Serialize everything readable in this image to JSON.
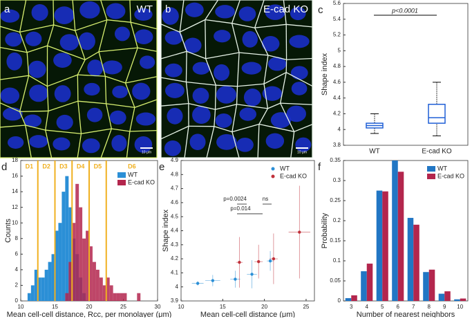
{
  "images": [
    {
      "panel_label": "a",
      "label": "WT",
      "scale_bar": "10 μm"
    },
    {
      "panel_label": "b",
      "label": "E-cad KO",
      "scale_bar": "10 μm"
    }
  ],
  "chart_data": [
    {
      "type": "box",
      "panel_label": "c",
      "ylabel": "Shape index",
      "categories": [
        "WT",
        "E-cad KO"
      ],
      "boxes": [
        {
          "whislo": 3.95,
          "q1": 4.02,
          "med": 4.05,
          "q3": 4.08,
          "whishi": 4.2
        },
        {
          "whislo": 3.92,
          "q1": 4.08,
          "med": 4.15,
          "q3": 4.32,
          "whishi": 4.6
        }
      ],
      "color": "#1f5fd6",
      "ylim": [
        3.8,
        5.6
      ],
      "yticks": [
        3.8,
        4,
        4.2,
        4.4,
        4.6,
        4.8,
        5,
        5.2,
        5.4,
        5.6
      ],
      "annotation": "p<0.0001"
    },
    {
      "type": "histogram",
      "panel_label": "d",
      "xlabel": "Mean cell-cell distance, Rcc, per monolayer (μm)",
      "ylabel": "Counts",
      "bins": [
        11,
        11.5,
        12,
        12.5,
        13,
        13.5,
        14,
        14.5,
        15,
        15.5,
        16,
        16.5,
        17,
        17.5,
        18,
        18.5,
        19,
        19.5,
        20,
        20.5,
        21,
        21.5,
        22,
        22.5,
        23,
        23.5,
        24,
        24.5,
        25,
        25.5,
        26,
        26.5,
        27,
        27.5,
        28
      ],
      "series": [
        {
          "name": "WT",
          "color": "#2b8fd6",
          "values": [
            1,
            2,
            4,
            3,
            3,
            4,
            5,
            6,
            9,
            10,
            14,
            16,
            12,
            8,
            6,
            3,
            1,
            0,
            0,
            0,
            0,
            0,
            0,
            0,
            0,
            0,
            0,
            0,
            0,
            0,
            0,
            0,
            0,
            0
          ]
        },
        {
          "name": "E-cad KO",
          "color": "#b3264d",
          "values": [
            0,
            0,
            0,
            0,
            0,
            0,
            0,
            0,
            0,
            0,
            0,
            1,
            5,
            10,
            15,
            12,
            8,
            9,
            7,
            5,
            4,
            3,
            2,
            3,
            2,
            1,
            1,
            1,
            1,
            0,
            0,
            0,
            1,
            0
          ]
        }
      ],
      "regions": {
        "labels": [
          "D1",
          "D2",
          "D3",
          "D4",
          "D5",
          "D6"
        ],
        "boundaries": [
          12.5,
          15,
          17.5,
          20,
          22.5
        ],
        "color": "#f0b020"
      },
      "xlim": [
        10,
        30
      ],
      "xticks": [
        10,
        15,
        20,
        25,
        30
      ],
      "ylim": [
        0,
        18
      ],
      "yticks": [
        0,
        2,
        4,
        6,
        8,
        10,
        12,
        14,
        16,
        18
      ],
      "legend": "upper right"
    },
    {
      "type": "errorbar",
      "panel_label": "e",
      "xlabel": "Mean cell-cell distance (μm)",
      "ylabel": "Shape index",
      "series": [
        {
          "name": "WT",
          "color": "#2b8fd6",
          "x": [
            12,
            13.8,
            16.5,
            18.5,
            20.7
          ],
          "xerr": [
            0.7,
            0.9,
            0.6,
            0.6,
            0.4
          ],
          "values": [
            4.025,
            4.045,
            4.055,
            4.09,
            4.185
          ],
          "yerr": [
            0.015,
            0.04,
            0.06,
            0.1,
            0.07
          ]
        },
        {
          "name": "E-cad KO",
          "color": "#c0303a",
          "x": [
            17,
            19.3,
            21.1,
            24.2
          ],
          "xerr": [
            0.4,
            0.5,
            0.5,
            1.3
          ],
          "values": [
            4.175,
            4.18,
            4.2,
            4.39
          ],
          "yerr": [
            0.18,
            0.12,
            0.18,
            0.33
          ]
        }
      ],
      "annotations": [
        "p=0.0024",
        "p=0.014",
        "ns"
      ],
      "xlim": [
        10,
        26
      ],
      "xticks": [
        10,
        15,
        20,
        25
      ],
      "ylim": [
        3.9,
        4.9
      ],
      "yticks": [
        3.9,
        4,
        4.1,
        4.2,
        4.3,
        4.4,
        4.5,
        4.6,
        4.7,
        4.8,
        4.9
      ],
      "legend": "upper right"
    },
    {
      "type": "bar",
      "panel_label": "f",
      "xlabel": "Number of nearest neighbors",
      "ylabel": "Probability",
      "categories": [
        "3",
        "4",
        "5",
        "6",
        "7",
        "8",
        "9",
        "10"
      ],
      "series": [
        {
          "name": "WT",
          "color": "#2176c4",
          "values": [
            0.007,
            0.074,
            0.275,
            0.35,
            0.207,
            0.072,
            0.018,
            0.004
          ]
        },
        {
          "name": "E-cad KO",
          "color": "#b3264d",
          "values": [
            0.014,
            0.093,
            0.273,
            0.322,
            0.19,
            0.078,
            0.024,
            0.006
          ]
        }
      ],
      "ylim": [
        0,
        0.35
      ],
      "yticks": [
        0,
        0.05,
        0.1,
        0.15,
        0.2,
        0.25,
        0.3,
        0.35
      ],
      "legend": "upper right"
    }
  ]
}
